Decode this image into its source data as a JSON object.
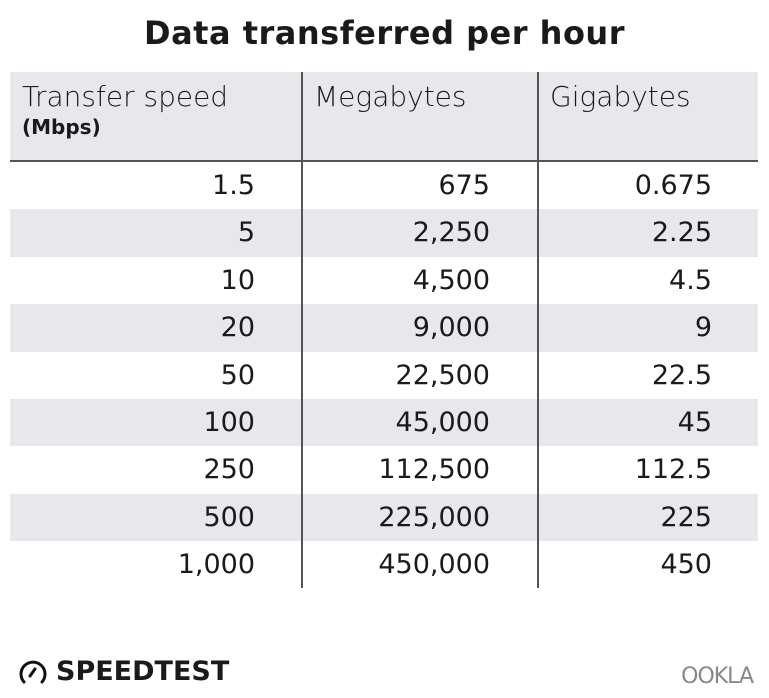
{
  "chart_data": {
    "type": "table",
    "title": "Data transferred per hour",
    "columns": [
      {
        "label": "Transfer speed",
        "sublabel": "(Mbps)"
      },
      {
        "label": "Megabytes"
      },
      {
        "label": "Gigabytes"
      }
    ],
    "rows": [
      [
        "1.5",
        "675",
        "0.675"
      ],
      [
        "5",
        "2,250",
        "2.25"
      ],
      [
        "10",
        "4,500",
        "4.5"
      ],
      [
        "20",
        "9,000",
        "9"
      ],
      [
        "50",
        "22,500",
        "22.5"
      ],
      [
        "100",
        "45,000",
        "45"
      ],
      [
        "250",
        "112,500",
        "112.5"
      ],
      [
        "500",
        "225,000",
        "225"
      ],
      [
        "1,000",
        "450,000",
        "450"
      ]
    ]
  },
  "branding": {
    "speedtest": "SPEEDTEST",
    "ookla": "OOKLA"
  },
  "colors": {
    "header_bg": "#e8e8ec",
    "stripe": "#e8e8ec",
    "divider": "#555555"
  }
}
